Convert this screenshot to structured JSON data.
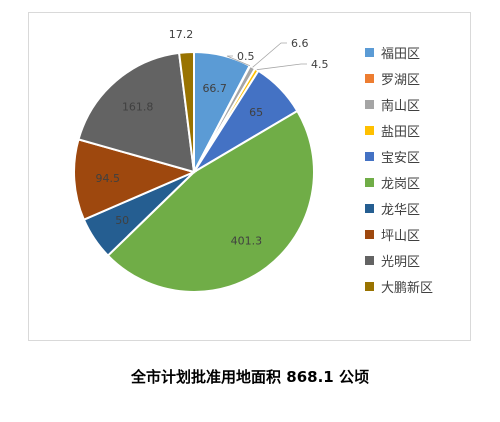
{
  "chart_data": {
    "type": "pie",
    "title": "全市计划批准用地面积 868.1 公顷",
    "categories": [
      "福田区",
      "罗湖区",
      "南山区",
      "盐田区",
      "宝安区",
      "龙岗区",
      "龙华区",
      "坪山区",
      "光明区",
      "大鹏新区"
    ],
    "values": [
      66.7,
      0.5,
      6.6,
      4.5,
      65,
      401.3,
      50,
      94.5,
      161.8,
      17.2
    ],
    "data_labels": [
      "66.7",
      "0.5",
      "6.6",
      "4.5",
      "65",
      "401.3",
      "50",
      "94.5",
      "161.8",
      "17.2"
    ],
    "colors": [
      "#5B9BD5",
      "#ED7D31",
      "#A5A5A5",
      "#FFC000",
      "#4472C4",
      "#70AD47",
      "#255E91",
      "#9E480E",
      "#636363",
      "#997300"
    ],
    "label_colors": [
      "#404040",
      "#404040",
      "#404040",
      "#404040",
      "#404040",
      "#404040",
      "#404040",
      "#404040",
      "#404040",
      "#404040"
    ],
    "start_angle": "12 o'clock",
    "direction": "clockwise",
    "legend_position": "right",
    "grid": false
  }
}
